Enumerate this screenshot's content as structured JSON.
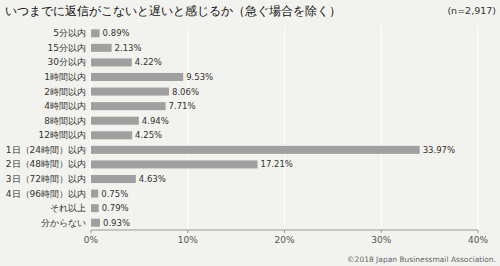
{
  "chart_data": {
    "type": "bar",
    "orientation": "horizontal",
    "title": "いつまでに返信がこないと遅いと感じるか（急ぐ場合を除く）",
    "annotations": [
      "(n=2,917)",
      "©2018 Japan Businessmail Association."
    ],
    "categories": [
      "5分以内",
      "15分以内",
      "30分以内",
      "1時間以内",
      "2時間以内",
      "4時間以内",
      "8時間以内",
      "12時間以内",
      "1日（24時間）以内",
      "2日（48時間）以内",
      "3日（72時間）以内",
      "4日（96時間）以内",
      "それ以上",
      "分からない"
    ],
    "values": [
      0.89,
      2.13,
      4.22,
      9.53,
      8.06,
      7.71,
      4.94,
      4.25,
      33.97,
      17.21,
      4.63,
      0.75,
      0.79,
      0.93
    ],
    "value_labels": [
      "0.89%",
      "2.13%",
      "4.22%",
      "9.53%",
      "8.06%",
      "7.71%",
      "4.94%",
      "4.25%",
      "33.97%",
      "17.21%",
      "4.63%",
      "0.75%",
      "0.79%",
      "0.93%"
    ],
    "data_labels": true,
    "color": "#a0a0a0",
    "xlim": [
      0,
      40
    ],
    "xticks": [
      {
        "value": 0,
        "label": "0%"
      },
      {
        "value": 10,
        "label": "10%"
      },
      {
        "value": 20,
        "label": "20%"
      },
      {
        "value": 30,
        "label": "30%"
      },
      {
        "value": 40,
        "label": "40%"
      }
    ],
    "grid": true
  }
}
